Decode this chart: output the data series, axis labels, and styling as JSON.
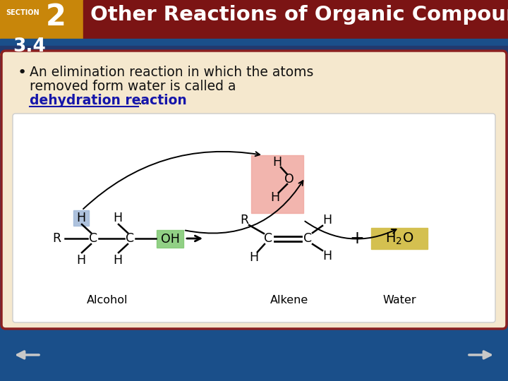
{
  "title": "Other Reactions of Organic Compounds",
  "section_label": "SECTION",
  "section_num": "2",
  "section_sub": "3.4",
  "header_dark_red": "#7B1414",
  "header_orange": "#C8860A",
  "header_text": "#FFFFFF",
  "body_bg": "#F5E8CE",
  "body_border": "#8B2020",
  "white_box": "#FFFFFF",
  "h_box_color": "#A0B8D8",
  "oh_box_color": "#7EC870",
  "water_pink": "#F0A8A0",
  "h2o_yellow": "#D4C050",
  "footer_blue": "#1A4F8A",
  "bullet_text_color": "#1a1a1a",
  "blue_link_color": "#1515AA",
  "slide_bg": "#1A4F8A",
  "bullet_line1": "An elimination reaction in which the atoms",
  "bullet_line2": "removed form water is called a",
  "bullet_bold": "dehydration reaction",
  "alcohol_label": "Alcohol",
  "alkene_label": "Alkene",
  "water_label": "Water"
}
